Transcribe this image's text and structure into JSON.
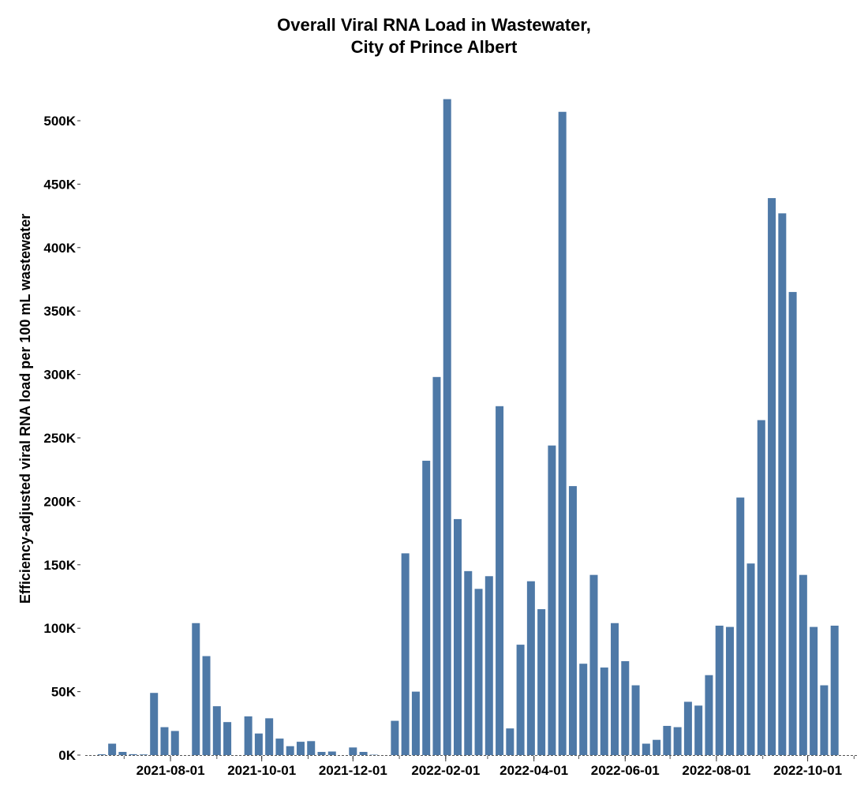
{
  "chart_data": {
    "type": "bar",
    "title_lines": [
      "Overall Viral RNA Load in Wastewater,",
      "City of Prince Albert"
    ],
    "xlabel": "",
    "ylabel": "Efficiency-adjusted viral RNA load per 100 mL wastewater",
    "ylim": [
      0,
      520000
    ],
    "y_ticks": [
      {
        "value": 0,
        "label": "0K"
      },
      {
        "value": 50000,
        "label": "50K"
      },
      {
        "value": 100000,
        "label": "100K"
      },
      {
        "value": 150000,
        "label": "150K"
      },
      {
        "value": 200000,
        "label": "200K"
      },
      {
        "value": 250000,
        "label": "250K"
      },
      {
        "value": 300000,
        "label": "300K"
      },
      {
        "value": 350000,
        "label": "350K"
      },
      {
        "value": 400000,
        "label": "400K"
      },
      {
        "value": 450000,
        "label": "450K"
      },
      {
        "value": 500000,
        "label": "500K"
      }
    ],
    "x_range": [
      "2021-06-05",
      "2022-11-04"
    ],
    "x_ticks": [
      {
        "date": "2021-08-01",
        "label": "2021-08-01"
      },
      {
        "date": "2021-10-01",
        "label": "2021-10-01"
      },
      {
        "date": "2021-12-01",
        "label": "2021-12-01"
      },
      {
        "date": "2022-02-01",
        "label": "2022-02-01"
      },
      {
        "date": "2022-04-01",
        "label": "2022-04-01"
      },
      {
        "date": "2022-06-01",
        "label": "2022-06-01"
      },
      {
        "date": "2022-08-01",
        "label": "2022-08-01"
      },
      {
        "date": "2022-10-01",
        "label": "2022-10-01"
      }
    ],
    "grid": false,
    "bar_color": "#4e79a7",
    "series": [
      {
        "dates": [
          "2021-06-16",
          "2021-06-23",
          "2021-06-30",
          "2021-07-07",
          "2021-07-14",
          "2021-07-21",
          "2021-07-28",
          "2021-08-04",
          "2021-08-11",
          "2021-08-18",
          "2021-08-25",
          "2021-09-01",
          "2021-09-08",
          "2021-09-15",
          "2021-09-22",
          "2021-09-29",
          "2021-10-06",
          "2021-10-13",
          "2021-10-20",
          "2021-10-27",
          "2021-11-03",
          "2021-11-10",
          "2021-11-17",
          "2021-11-24",
          "2021-12-01",
          "2021-12-08",
          "2021-12-15",
          "2021-12-22",
          "2021-12-29",
          "2022-01-05",
          "2022-01-12",
          "2022-01-19",
          "2022-01-26",
          "2022-02-02",
          "2022-02-09",
          "2022-02-16",
          "2022-02-23",
          "2022-03-02",
          "2022-03-09",
          "2022-03-16",
          "2022-03-23",
          "2022-03-30",
          "2022-04-06",
          "2022-04-13",
          "2022-04-20",
          "2022-04-27",
          "2022-05-04",
          "2022-05-11",
          "2022-05-18",
          "2022-05-25",
          "2022-06-01",
          "2022-06-08",
          "2022-06-15",
          "2022-06-22",
          "2022-06-29",
          "2022-07-06",
          "2022-07-13",
          "2022-07-20",
          "2022-07-27",
          "2022-08-03",
          "2022-08-10",
          "2022-08-17",
          "2022-08-24",
          "2022-08-31",
          "2022-09-07",
          "2022-09-14",
          "2022-09-21",
          "2022-09-28",
          "2022-10-05",
          "2022-10-12",
          "2022-10-19",
          "2022-10-26"
        ],
        "values": [
          600,
          9000,
          2500,
          700,
          500,
          49000,
          22000,
          19000,
          0,
          104000,
          78000,
          38500,
          26000,
          0,
          30500,
          17000,
          29000,
          13000,
          7000,
          10500,
          11000,
          2500,
          2800,
          0,
          6000,
          2500,
          300,
          0,
          27000,
          159000,
          50000,
          232000,
          298000,
          517000,
          186000,
          145000,
          131000,
          141000,
          275000,
          21000,
          87000,
          137000,
          115000,
          244000,
          507000,
          212000,
          72000,
          142000,
          69000,
          104000,
          74000,
          55000,
          9000,
          12000,
          23000,
          22000,
          42000,
          39000,
          63000,
          102000,
          101000,
          203000,
          151000,
          264000,
          439000,
          427000,
          365000,
          142000,
          101000,
          55000,
          102000,
          0
        ]
      }
    ]
  }
}
